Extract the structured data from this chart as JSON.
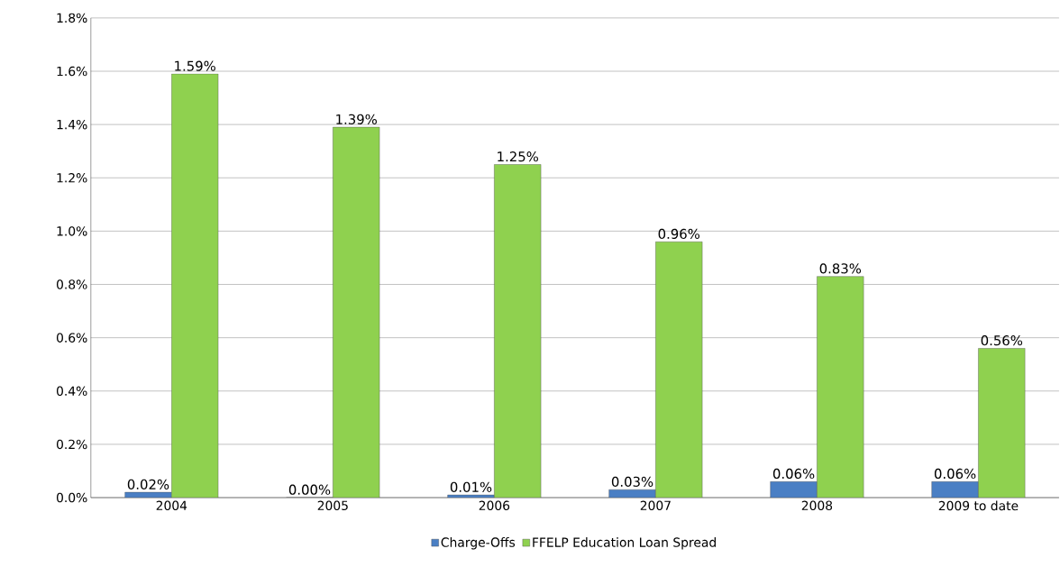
{
  "chart_data": {
    "type": "bar",
    "categories": [
      "2004",
      "2005",
      "2006",
      "2007",
      "2008",
      "2009 to date"
    ],
    "series": [
      {
        "name": "Charge-Offs",
        "color": "#4a7fc4",
        "values": [
          0.02,
          0.0,
          0.01,
          0.03,
          0.06,
          0.06
        ],
        "value_labels": [
          "0.02%",
          "0.00%",
          "0.01%",
          "0.03%",
          "0.06%",
          "0.06%"
        ]
      },
      {
        "name": "FFELP Education Loan Spread",
        "color": "#8fd14f",
        "values": [
          1.59,
          1.39,
          1.25,
          0.96,
          0.83,
          0.56
        ],
        "value_labels": [
          "1.59%",
          "1.39%",
          "1.25%",
          "0.96%",
          "0.83%",
          "0.56%"
        ]
      }
    ],
    "ylim": [
      0,
      1.8
    ],
    "yticks": [
      {
        "value": 0,
        "label": "0.0%"
      },
      {
        "value": 0.2,
        "label": "0.2%"
      },
      {
        "value": 0.4,
        "label": "0.4%"
      },
      {
        "value": 0.6,
        "label": "0.6%"
      },
      {
        "value": 0.8,
        "label": "0.8%"
      },
      {
        "value": 1.0,
        "label": "1.0%"
      },
      {
        "value": 1.2,
        "label": "1.2%"
      },
      {
        "value": 1.4,
        "label": "1.4%"
      },
      {
        "value": 1.6,
        "label": "1.6%"
      },
      {
        "value": 1.8,
        "label": "1.8%"
      }
    ],
    "grid": "y",
    "legend": "bottom"
  }
}
